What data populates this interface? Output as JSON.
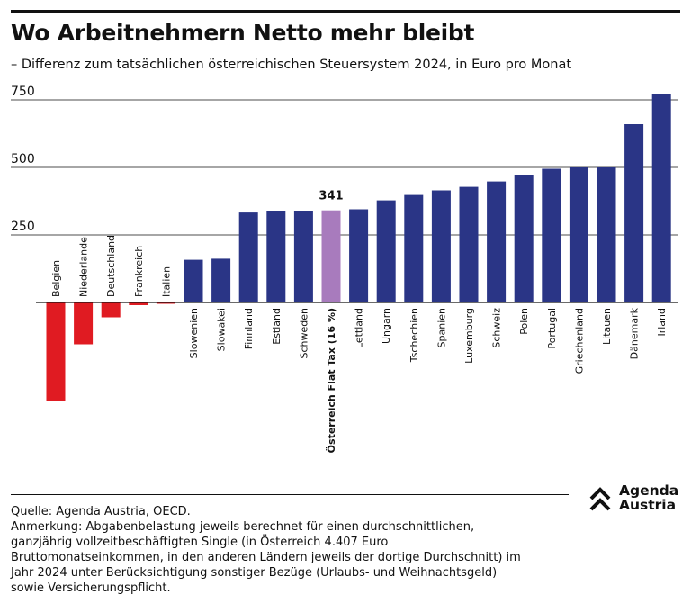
{
  "title": "Wo Arbeitnehmern Netto mehr bleibt",
  "subtitle": "– Differenz zum tatsächlichen österreichischen Steuersystem 2024, in Euro pro Monat",
  "source_line": "Quelle: Agenda Austria, OECD.",
  "note_lines": [
    "Anmerkung: Abgabenbelastung jeweils berechnet für einen durchschnittlichen,",
    "ganzjährig vollzeitbeschäftigten Single (in Österreich 4.407 Euro",
    "Bruttomonatseinkommen, in den anderen Ländern jeweils der dortige Durchschnitt) im",
    "Jahr 2024 unter Berücksichtigung sonstiger Bezüge (Urlaubs- und Weihnachtsgeld)",
    "sowie Versicherungspflicht."
  ],
  "logo": {
    "line1": "Agenda",
    "line2": "Austria"
  },
  "colors": {
    "positive": "#2a3586",
    "negative": "#e01b22",
    "highlight": "#a87bbd",
    "text": "#111111"
  },
  "chart_data": {
    "type": "bar",
    "title": "Wo Arbeitnehmern Netto mehr bleibt",
    "subtitle": "– Differenz zum tatsächlichen österreichischen Steuersystem 2024, in Euro pro Monat",
    "xlabel": "",
    "ylabel": "",
    "ylim": [
      -380,
      770
    ],
    "yticks": [
      250,
      500,
      750
    ],
    "categories": [
      "Belgien",
      "Niederlande",
      "Deutschland",
      "Frankreich",
      "Italien",
      "Slowenien",
      "Slowakei",
      "Finnland",
      "Estland",
      "Schweden",
      "Österreich Flat Tax (16 %)",
      "Lettland",
      "Ungarn",
      "Tschechien",
      "Spanien",
      "Luxemburg",
      "Schweiz",
      "Polen",
      "Portugal",
      "Griechenland",
      "Litauen",
      "Dänemark",
      "Irland"
    ],
    "values": [
      -365,
      -155,
      -55,
      -10,
      -5,
      158,
      162,
      333,
      338,
      338,
      341,
      345,
      378,
      398,
      415,
      428,
      448,
      470,
      495,
      500,
      500,
      660,
      770
    ],
    "highlight_index": 10,
    "highlight_label": "341"
  }
}
